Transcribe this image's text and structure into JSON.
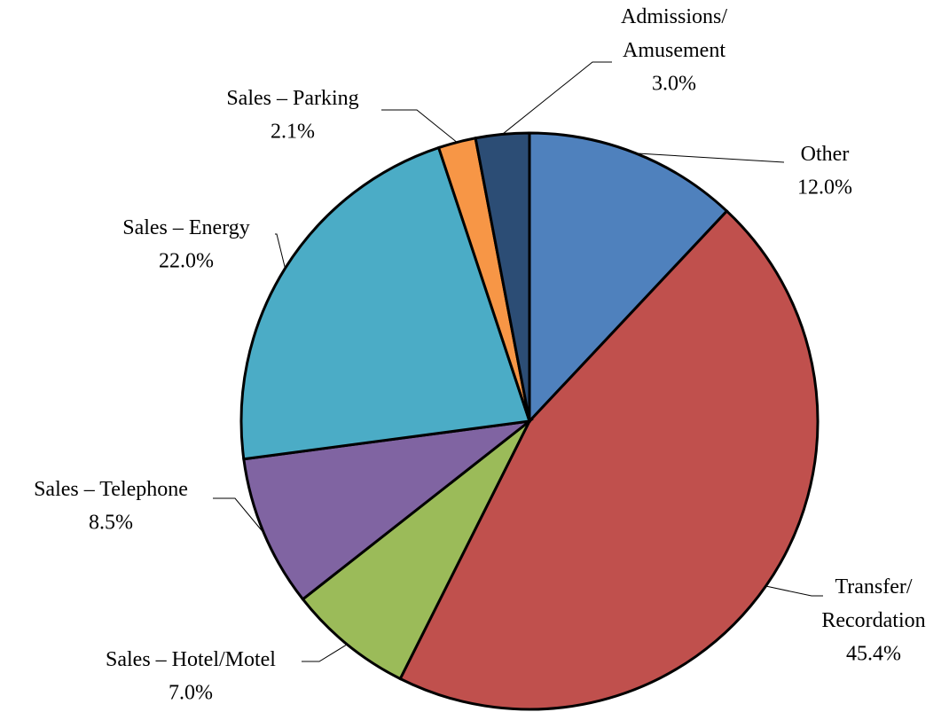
{
  "chart_data": {
    "type": "pie",
    "categories": [
      "Other",
      "Transfer/\nRecordation",
      "Sales – Hotel/Motel",
      "Sales – Telephone",
      "Sales – Energy",
      "Sales – Parking",
      "Admissions/\nAmusement"
    ],
    "values": [
      12.0,
      45.4,
      7.0,
      8.5,
      22.0,
      2.1,
      3.0
    ],
    "value_labels": [
      "12.0%",
      "45.4%",
      "7.0%",
      "8.5%",
      "22.0%",
      "2.1%",
      "3.0%"
    ],
    "colors": [
      "#4f81bd",
      "#c0504d",
      "#9bbb59",
      "#8064a2",
      "#4bacc6",
      "#f79646",
      "#2c4d75"
    ]
  }
}
